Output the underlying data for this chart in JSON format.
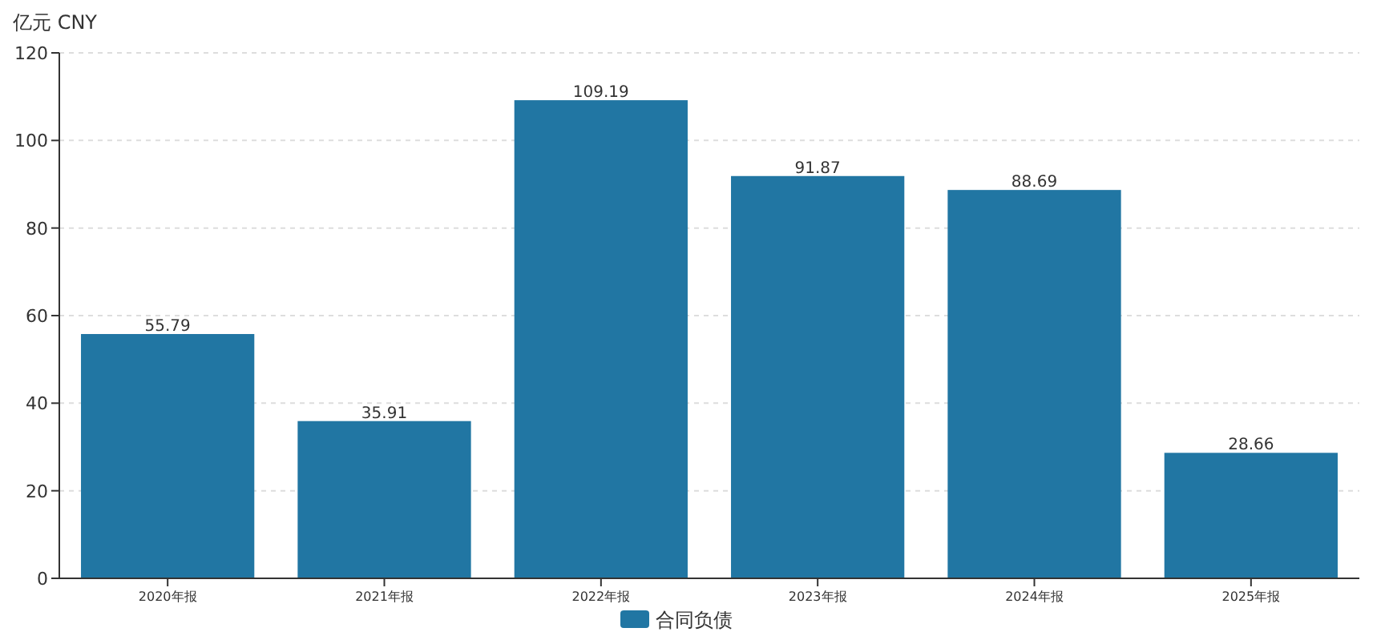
{
  "chart_data": {
    "type": "bar",
    "ylabel": "亿元  CNY",
    "categories": [
      "2020年报",
      "2021年报",
      "2022年报",
      "2023年报",
      "2024年报",
      "2025年报"
    ],
    "series": [
      {
        "name": "合同负债",
        "color": "#2176a3",
        "values": [
          55.79,
          35.91,
          109.19,
          91.87,
          88.69,
          28.66
        ]
      }
    ],
    "ylim": [
      0,
      120
    ],
    "yticks": [
      0,
      20,
      40,
      60,
      80,
      100,
      120
    ],
    "grid": "y",
    "legend": "bottom",
    "data_labels": true
  }
}
